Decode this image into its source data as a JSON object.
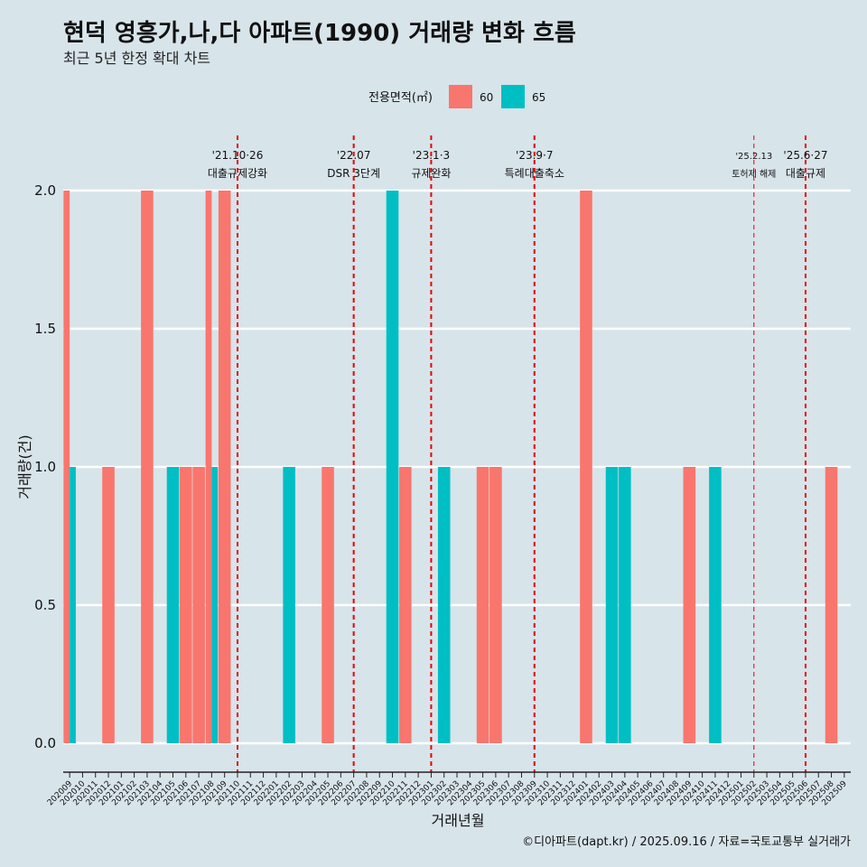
{
  "colors": {
    "60": "#f8766d",
    "65": "#00bfc4",
    "event_line": "#e60000",
    "grid": "#ffffff",
    "background": "#d7e4ea"
  },
  "chart_data": {
    "type": "bar",
    "title": "현덕 영흥가,나,다 아파트(1990) 거래량 변화 흐름",
    "subtitle": "최근 5년 한정 확대 차트",
    "xlabel": "거래년월",
    "ylabel": "거래량(건)",
    "ylim": [
      0,
      2
    ],
    "yticks": [
      "0.0",
      "0.5",
      "1.0",
      "1.5",
      "2.0"
    ],
    "legend": {
      "title": "전용면적(㎡)",
      "placement": "top"
    },
    "categories": [
      "202009",
      "202010",
      "202011",
      "202012",
      "202101",
      "202102",
      "202103",
      "202104",
      "202105",
      "202106",
      "202107",
      "202108",
      "202109",
      "202110",
      "202111",
      "202112",
      "202201",
      "202202",
      "202203",
      "202204",
      "202205",
      "202206",
      "202207",
      "202208",
      "202209",
      "202210",
      "202211",
      "202212",
      "202301",
      "202302",
      "202303",
      "202304",
      "202305",
      "202306",
      "202307",
      "202308",
      "202309",
      "202310",
      "202311",
      "202312",
      "202401",
      "202402",
      "202403",
      "202404",
      "202405",
      "202406",
      "202407",
      "202408",
      "202409",
      "202410",
      "202411",
      "202412",
      "202501",
      "202502",
      "202503",
      "202504",
      "202505",
      "202506",
      "202507",
      "202508",
      "202509"
    ],
    "series": [
      {
        "name": "60",
        "color": "#f8766d",
        "values": [
          2,
          0,
          0,
          1,
          0,
          0,
          2,
          0,
          0,
          1,
          1,
          2,
          2,
          0,
          0,
          0,
          0,
          0,
          0,
          0,
          1,
          0,
          0,
          0,
          0,
          0,
          1,
          0,
          0,
          0,
          0,
          0,
          1,
          1,
          0,
          0,
          0,
          0,
          0,
          0,
          2,
          0,
          0,
          0,
          0,
          0,
          0,
          0,
          1,
          0,
          0,
          0,
          0,
          0,
          0,
          0,
          0,
          0,
          0,
          1,
          0
        ]
      },
      {
        "name": "65",
        "color": "#00bfc4",
        "values": [
          1,
          0,
          0,
          0,
          0,
          0,
          0,
          0,
          1,
          0,
          0,
          1,
          0,
          0,
          0,
          0,
          0,
          1,
          0,
          0,
          0,
          0,
          0,
          0,
          0,
          2,
          0,
          0,
          0,
          1,
          0,
          0,
          0,
          0,
          0,
          0,
          0,
          0,
          0,
          0,
          0,
          0,
          1,
          1,
          0,
          0,
          0,
          0,
          0,
          0,
          1,
          0,
          0,
          0,
          0,
          0,
          0,
          0,
          0,
          0,
          0
        ]
      }
    ],
    "events": [
      {
        "month": "202110",
        "date": "'21.10·26",
        "label": "대출규제강화",
        "small": false
      },
      {
        "month": "202207",
        "date": "'22.07",
        "label": "DSR 3단계",
        "small": false
      },
      {
        "month": "202301",
        "date": "'23.1·3",
        "label": "규제완화",
        "small": false
      },
      {
        "month": "202309",
        "date": "'23.9·7",
        "label": "특례대출축소",
        "small": false
      },
      {
        "month": "202502",
        "date": "'25.2.13",
        "label": "토허제 해제",
        "small": true
      },
      {
        "month": "202506",
        "date": "'25.6·27",
        "label": "대출규제",
        "small": false
      }
    ]
  },
  "caption": "©디아파트(dapt.kr) / 2025.09.16 / 자료=국토교통부 실거래가"
}
